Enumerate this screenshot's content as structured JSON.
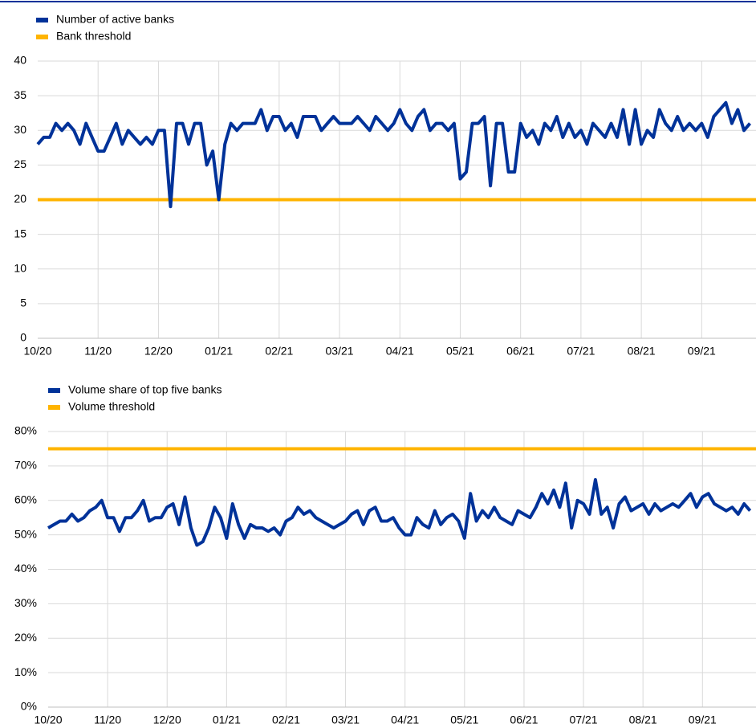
{
  "chart_data": [
    {
      "type": "line",
      "categories": [
        "10/20",
        null,
        null,
        null,
        null,
        null,
        null,
        null,
        null,
        null,
        "11/20",
        null,
        null,
        null,
        null,
        null,
        null,
        null,
        null,
        null,
        "12/20",
        null,
        null,
        null,
        null,
        null,
        null,
        null,
        null,
        null,
        "01/21",
        null,
        null,
        null,
        null,
        null,
        null,
        null,
        null,
        null,
        "02/21",
        null,
        null,
        null,
        null,
        null,
        null,
        null,
        null,
        null,
        "03/21",
        null,
        null,
        null,
        null,
        null,
        null,
        null,
        null,
        null,
        "04/21",
        null,
        null,
        null,
        null,
        null,
        null,
        null,
        null,
        null,
        "05/21",
        null,
        null,
        null,
        null,
        null,
        null,
        null,
        null,
        null,
        "06/21",
        null,
        null,
        null,
        null,
        null,
        null,
        null,
        null,
        null,
        "07/21",
        null,
        null,
        null,
        null,
        null,
        null,
        null,
        null,
        null,
        "08/21",
        null,
        null,
        null,
        null,
        null,
        null,
        null,
        null,
        null,
        "09/21",
        null,
        null,
        null,
        null,
        null,
        null,
        null,
        null
      ],
      "series": [
        {
          "name": "Number of active banks",
          "color": "#003299",
          "values": [
            28,
            29,
            29,
            31,
            30,
            31,
            30,
            28,
            31,
            29,
            27,
            27,
            29,
            31,
            28,
            30,
            29,
            28,
            29,
            28,
            30,
            30,
            19,
            31,
            31,
            28,
            31,
            31,
            25,
            27,
            20,
            28,
            31,
            30,
            31,
            31,
            31,
            33,
            30,
            32,
            32,
            30,
            31,
            29,
            32,
            32,
            32,
            30,
            31,
            32,
            31,
            31,
            31,
            32,
            31,
            30,
            32,
            31,
            30,
            31,
            33,
            31,
            30,
            32,
            33,
            30,
            31,
            31,
            30,
            31,
            23,
            24,
            31,
            31,
            32,
            22,
            31,
            31,
            24,
            24,
            31,
            29,
            30,
            28,
            31,
            30,
            32,
            29,
            31,
            29,
            30,
            28,
            31,
            30,
            29,
            31,
            29,
            33,
            28,
            33,
            28,
            30,
            29,
            33,
            31,
            30,
            32,
            30,
            31,
            30,
            31,
            29,
            32,
            33,
            34,
            31,
            33,
            30,
            31
          ]
        }
      ],
      "thresholds": [
        {
          "name": "Bank threshold",
          "color": "#ffb400",
          "value": 20
        }
      ],
      "ylim": [
        0,
        40
      ],
      "yticks": [
        0,
        5,
        10,
        15,
        20,
        25,
        30,
        35,
        40
      ],
      "grid": true
    },
    {
      "type": "line",
      "categories": [
        "10/20",
        null,
        null,
        null,
        null,
        null,
        null,
        null,
        null,
        null,
        "11/20",
        null,
        null,
        null,
        null,
        null,
        null,
        null,
        null,
        null,
        "12/20",
        null,
        null,
        null,
        null,
        null,
        null,
        null,
        null,
        null,
        "01/21",
        null,
        null,
        null,
        null,
        null,
        null,
        null,
        null,
        null,
        "02/21",
        null,
        null,
        null,
        null,
        null,
        null,
        null,
        null,
        null,
        "03/21",
        null,
        null,
        null,
        null,
        null,
        null,
        null,
        null,
        null,
        "04/21",
        null,
        null,
        null,
        null,
        null,
        null,
        null,
        null,
        null,
        "05/21",
        null,
        null,
        null,
        null,
        null,
        null,
        null,
        null,
        null,
        "06/21",
        null,
        null,
        null,
        null,
        null,
        null,
        null,
        null,
        null,
        "07/21",
        null,
        null,
        null,
        null,
        null,
        null,
        null,
        null,
        null,
        "08/21",
        null,
        null,
        null,
        null,
        null,
        null,
        null,
        null,
        null,
        "09/21",
        null,
        null,
        null,
        null,
        null,
        null,
        null,
        null
      ],
      "series": [
        {
          "name": "Volume share of top five banks",
          "color": "#003299",
          "values": [
            52,
            53,
            54,
            54,
            56,
            54,
            55,
            57,
            58,
            60,
            55,
            55,
            51,
            55,
            55,
            57,
            60,
            54,
            55,
            55,
            58,
            59,
            53,
            61,
            52,
            47,
            48,
            52,
            58,
            55,
            49,
            59,
            53,
            49,
            53,
            52,
            52,
            51,
            52,
            50,
            54,
            55,
            58,
            56,
            57,
            55,
            54,
            53,
            52,
            53,
            54,
            56,
            57,
            53,
            57,
            58,
            54,
            54,
            55,
            52,
            50,
            50,
            55,
            53,
            52,
            57,
            53,
            55,
            56,
            54,
            49,
            62,
            54,
            57,
            55,
            58,
            55,
            54,
            53,
            57,
            56,
            55,
            58,
            62,
            59,
            63,
            58,
            65,
            52,
            60,
            59,
            56,
            66,
            56,
            58,
            52,
            59,
            61,
            57,
            58,
            59,
            56,
            59,
            57,
            58,
            59,
            58,
            60,
            62,
            58,
            61,
            62,
            59,
            58,
            57,
            58,
            56,
            59,
            57
          ]
        }
      ],
      "thresholds": [
        {
          "name": "Volume threshold",
          "color": "#ffb400",
          "value": 75
        }
      ],
      "ylim": [
        0,
        80
      ],
      "yticks": [
        {
          "value": 0,
          "label": "0%"
        },
        {
          "value": 10,
          "label": "10%"
        },
        {
          "value": 20,
          "label": "20%"
        },
        {
          "value": 30,
          "label": "30%"
        },
        {
          "value": 40,
          "label": "40%"
        },
        {
          "value": 50,
          "label": "50%"
        },
        {
          "value": 60,
          "label": "60%"
        },
        {
          "value": 70,
          "label": "70%"
        },
        {
          "value": 80,
          "label": "80%"
        }
      ],
      "grid": true
    }
  ]
}
